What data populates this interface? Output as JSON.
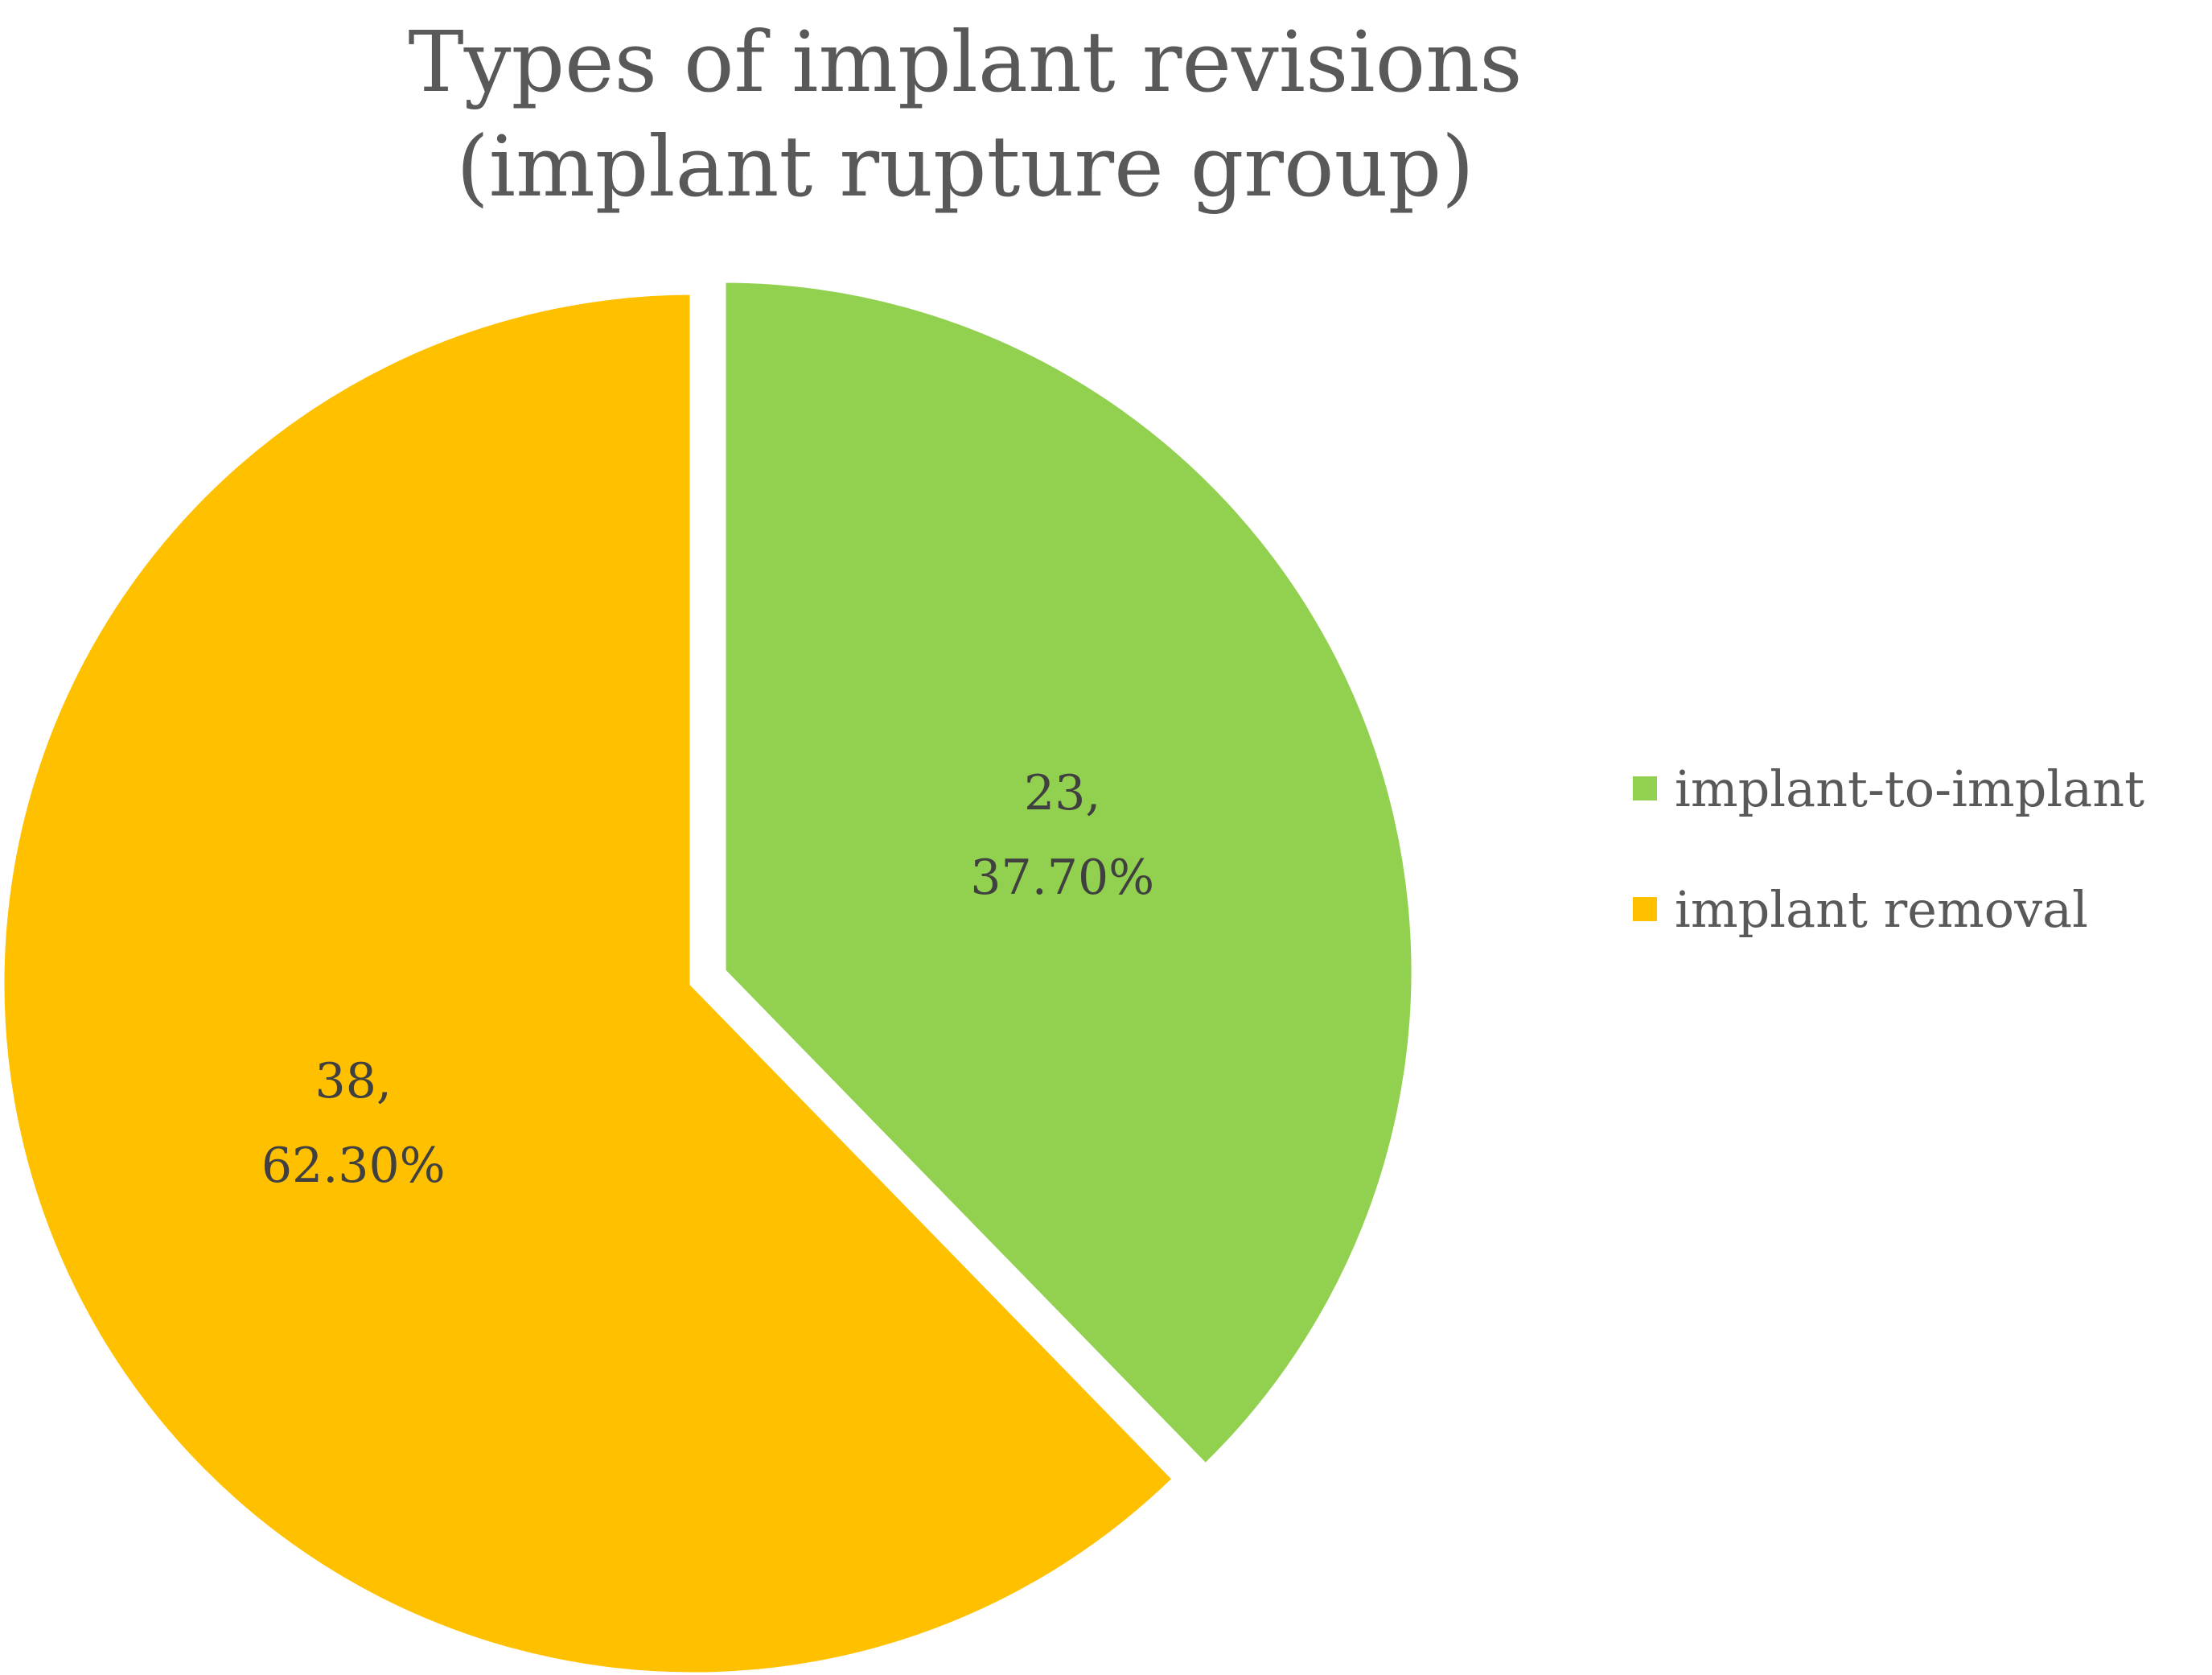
{
  "chart_data": {
    "type": "pie",
    "title_lines": [
      "Types of implant revisions",
      "(implant rupture group)"
    ],
    "categories": [
      "implant-to-implant",
      "implant removal"
    ],
    "values": [
      23,
      38
    ],
    "percent_labels": [
      "37.70%",
      "62.30%"
    ],
    "colors": [
      "#92D050",
      "#FFC000"
    ],
    "data_labels": [
      {
        "value": "23,",
        "percent": "37.70%"
      },
      {
        "value": "38,",
        "percent": "62.30%"
      }
    ],
    "legend": [
      {
        "label": "implant-to-implant",
        "color": "#92D050"
      },
      {
        "label": "implant removal",
        "color": "#FFC000"
      }
    ],
    "legend_position": "right",
    "start_angle_deg": 0,
    "direction": "clockwise"
  }
}
